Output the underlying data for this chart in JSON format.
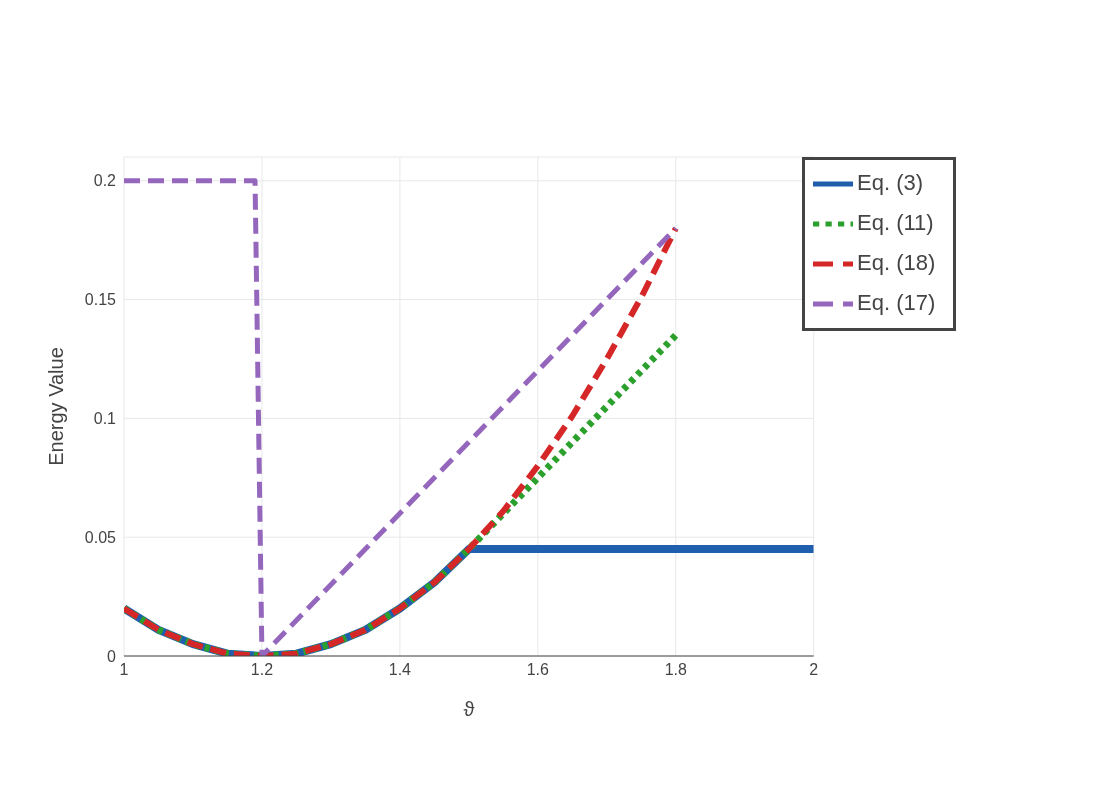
{
  "chart_data": {
    "type": "line",
    "xlabel": "ϑ",
    "ylabel": "Energy Value",
    "xlim": [
      1,
      2
    ],
    "ylim": [
      0,
      0.21
    ],
    "xticks": [
      1,
      1.2,
      1.4,
      1.6,
      1.8,
      2
    ],
    "yticks": [
      0,
      0.05,
      0.1,
      0.15,
      0.2
    ],
    "grid": true,
    "legend": "top right",
    "marker": "none",
    "series": [
      {
        "name": "Eq. (3)",
        "color": "#1f5fad",
        "line_style": "solid",
        "x": [
          1,
          1.05,
          1.1,
          1.15,
          1.2,
          1.25,
          1.3,
          1.35,
          1.4,
          1.45,
          1.5,
          2
        ],
        "values": [
          0.02,
          0.011,
          0.005,
          0.001,
          0,
          0.001,
          0.005,
          0.011,
          0.02,
          0.031,
          0.045,
          0.045
        ]
      },
      {
        "name": "Eq. (11)",
        "color": "#2ca02c",
        "line_style": "dotted",
        "x": [
          1,
          1.05,
          1.1,
          1.15,
          1.2,
          1.25,
          1.3,
          1.35,
          1.4,
          1.45,
          1.5,
          1.6,
          1.7,
          1.8
        ],
        "values": [
          0.02,
          0.011,
          0.005,
          0.001,
          0,
          0.001,
          0.005,
          0.011,
          0.02,
          0.031,
          0.045,
          0.075,
          0.105,
          0.135
        ]
      },
      {
        "name": "Eq. (18)",
        "color": "#d62728",
        "line_style": "dashed",
        "x": [
          1,
          1.05,
          1.1,
          1.15,
          1.2,
          1.25,
          1.3,
          1.35,
          1.4,
          1.45,
          1.5,
          1.55,
          1.6,
          1.65,
          1.7,
          1.75,
          1.8
        ],
        "values": [
          0.02,
          0.011,
          0.005,
          0.001,
          0,
          0.001,
          0.005,
          0.011,
          0.02,
          0.031,
          0.045,
          0.061,
          0.08,
          0.101,
          0.125,
          0.151,
          0.18
        ]
      },
      {
        "name": "Eq. (17)",
        "color": "#9467bd",
        "line_style": "dashed",
        "x": [
          1,
          1.19,
          1.2,
          1.8
        ],
        "values": [
          0.2,
          0.2,
          0,
          0.18
        ]
      }
    ]
  }
}
